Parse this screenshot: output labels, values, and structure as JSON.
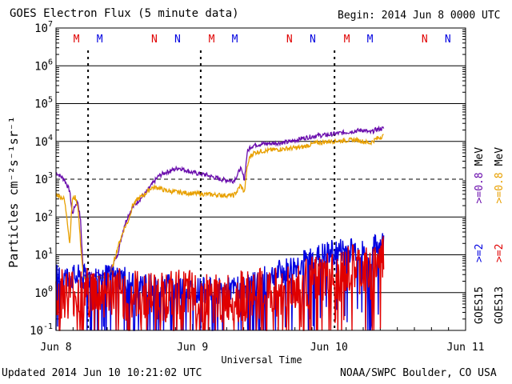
{
  "chart_data": {
    "type": "line",
    "title": "GOES Electron Flux (5 minute data)",
    "begin_label": "Begin: 2014 Jun 8 0000 UTC",
    "updated_label": "Updated 2014 Jun 10 10:21:02 UTC",
    "credit_label": "NOAA/SWPC Boulder, CO USA",
    "xlabel": "Universal Time",
    "ylabel": "Particles cm⁻²s⁻¹sr⁻¹",
    "xlim_days": [
      0,
      3
    ],
    "x_ticks": [
      {
        "day": 0,
        "label": "Jun 8"
      },
      {
        "day": 1,
        "label": "Jun 9"
      },
      {
        "day": 2,
        "label": "Jun 10"
      },
      {
        "day": 3,
        "label": "Jun 11"
      }
    ],
    "y_scale": "log",
    "ylim": [
      0.1,
      10000000
    ],
    "y_ticks": [
      {
        "mantissa": "10",
        "exp": "7"
      },
      {
        "mantissa": "10",
        "exp": "6"
      },
      {
        "mantissa": "10",
        "exp": "5"
      },
      {
        "mantissa": "10",
        "exp": "4"
      },
      {
        "mantissa": "10",
        "exp": "3"
      },
      {
        "mantissa": "10",
        "exp": "2"
      },
      {
        "mantissa": "10",
        "exp": "1"
      },
      {
        "mantissa": "10",
        "exp": "0"
      },
      {
        "mantissa": "10",
        "exp": "-1"
      }
    ],
    "dashed_threshold": 1000,
    "grid": true,
    "markers": [
      {
        "day": 0.15,
        "label": "M",
        "color": "#e00000"
      },
      {
        "day": 0.32,
        "label": "M",
        "color": "#0000e0"
      },
      {
        "day": 0.72,
        "label": "N",
        "color": "#e00000"
      },
      {
        "day": 0.89,
        "label": "N",
        "color": "#0000e0"
      },
      {
        "day": 1.14,
        "label": "M",
        "color": "#e00000"
      },
      {
        "day": 1.31,
        "label": "M",
        "color": "#0000e0"
      },
      {
        "day": 1.71,
        "label": "N",
        "color": "#e00000"
      },
      {
        "day": 1.88,
        "label": "N",
        "color": "#0000e0"
      },
      {
        "day": 2.13,
        "label": "M",
        "color": "#e00000"
      },
      {
        "day": 2.3,
        "label": "M",
        "color": "#0000e0"
      },
      {
        "day": 2.7,
        "label": "N",
        "color": "#e00000"
      },
      {
        "day": 2.87,
        "label": "N",
        "color": "#0000e0"
      }
    ],
    "midnight_dashes": [
      0.235,
      1.06,
      2.04
    ],
    "legend": [
      {
        "satellite": "GOES15",
        "entries": [
          {
            "label": ">=2",
            "color": "#0000e0"
          },
          {
            "label": ">=0.8",
            "color": "#6a0dad"
          },
          {
            "label": "MeV",
            "color": "#000000"
          }
        ]
      },
      {
        "satellite": "GOES13",
        "entries": [
          {
            "label": ">=2",
            "color": "#e00000"
          },
          {
            "label": ">=0.8",
            "color": "#e8a000"
          },
          {
            "label": "MeV",
            "color": "#000000"
          }
        ]
      }
    ],
    "series": [
      {
        "label": ">=0.8",
        "color": "#6a0dad",
        "x": [
          0,
          0.06,
          0.1,
          0.12,
          0.14,
          0.16,
          0.18,
          0.2,
          0.23,
          0.26,
          0.28,
          0.3,
          0.33,
          0.36,
          0.4,
          0.45,
          0.5,
          0.53,
          0.56,
          0.6,
          0.65,
          0.7,
          0.75,
          0.8,
          0.9,
          1.0,
          1.1,
          1.2,
          1.3,
          1.33,
          1.35,
          1.38,
          1.4,
          1.42,
          1.45,
          1.5,
          1.6,
          1.7,
          1.8,
          1.9,
          2.0,
          2.1,
          2.15,
          2.2,
          2.25,
          2.3,
          2.35,
          2.4
        ],
        "y": [
          1500,
          1000,
          500,
          120,
          200,
          250,
          80,
          3,
          3,
          3,
          3,
          3,
          3,
          3,
          4,
          10,
          60,
          110,
          180,
          260,
          400,
          700,
          1200,
          1500,
          2000,
          1500,
          1300,
          1000,
          900,
          1300,
          2000,
          1000,
          5000,
          7000,
          8000,
          8500,
          9000,
          9500,
          12000,
          14000,
          15000,
          17000,
          18000,
          19000,
          20000,
          17000,
          21000,
          22000
        ]
      },
      {
        "label": ">=0.8",
        "color": "#e8a000",
        "x": [
          0,
          0.06,
          0.08,
          0.1,
          0.12,
          0.14,
          0.16,
          0.18,
          0.2,
          0.23,
          0.26,
          0.28,
          0.3,
          0.33,
          0.36,
          0.4,
          0.45,
          0.5,
          0.53,
          0.56,
          0.6,
          0.65,
          0.7,
          0.75,
          0.8,
          0.9,
          1.0,
          1.1,
          1.2,
          1.3,
          1.33,
          1.35,
          1.38,
          1.4,
          1.42,
          1.45,
          1.5,
          1.6,
          1.7,
          1.8,
          1.9,
          2.0,
          2.1,
          2.2,
          2.3,
          2.35,
          2.4
        ],
        "y": [
          400,
          300,
          100,
          20,
          300,
          330,
          200,
          20,
          2.5,
          2.5,
          2.5,
          2.5,
          2.5,
          2.5,
          2.5,
          3,
          15,
          50,
          80,
          200,
          300,
          400,
          600,
          600,
          500,
          450,
          420,
          400,
          380,
          370,
          500,
          700,
          450,
          2000,
          4000,
          5000,
          5500,
          6000,
          6500,
          7000,
          9000,
          10000,
          10500,
          11000,
          9000,
          12000,
          14000
        ]
      },
      {
        "label": ">=2",
        "color": "#0000e0",
        "x": [
          0,
          0.1,
          0.2,
          0.3,
          0.4,
          0.5,
          0.6,
          0.8,
          1.0,
          1.2,
          1.3,
          1.4,
          1.5,
          1.6,
          1.7,
          1.8,
          1.9,
          2.0,
          2.1,
          2.2,
          2.25,
          2.3,
          2.33,
          2.35,
          2.4
        ],
        "y": [
          2.5,
          2.5,
          2.5,
          2.5,
          2.5,
          2.5,
          1.5,
          1.5,
          1.2,
          1.1,
          1.2,
          1.5,
          2,
          3,
          4,
          6,
          8,
          11,
          13,
          14,
          11,
          4,
          15,
          18,
          20
        ]
      },
      {
        "label": ">=2",
        "color": "#e00000",
        "x": [
          0,
          0.2,
          0.4,
          0.6,
          0.8,
          1.0,
          1.2,
          1.4,
          1.6,
          1.8,
          2.0,
          2.05,
          2.1,
          2.2,
          2.3,
          2.35,
          2.4
        ],
        "y": [
          1,
          1,
          1,
          0.8,
          0.8,
          0.8,
          0.7,
          0.8,
          1,
          1.5,
          2.5,
          2,
          3,
          4,
          3,
          6,
          8
        ]
      }
    ]
  }
}
